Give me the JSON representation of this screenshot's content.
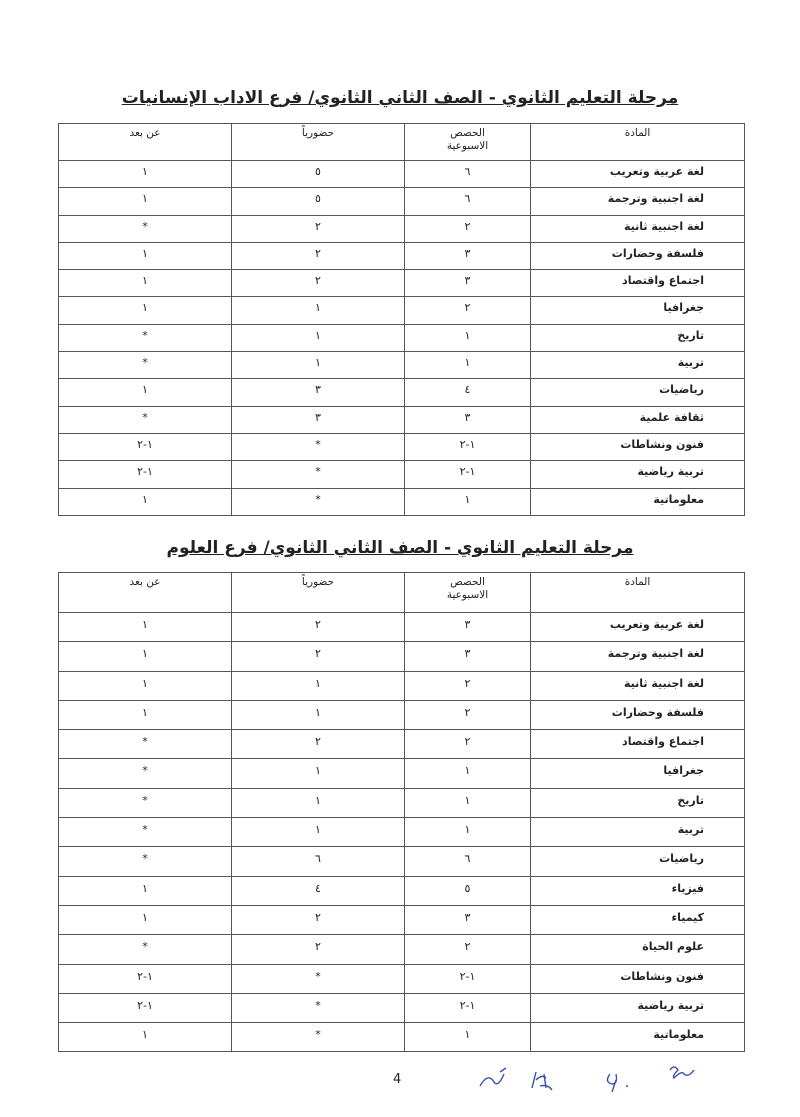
{
  "sections": [
    {
      "title": "مرحلة التعليم الثانوي - الصف الثاني الثانوي/ فرع الاداب الإنسانيات",
      "headers": {
        "subject": "المادة",
        "weekly_periods_1": "الحصص",
        "weekly_periods_2": "الاسبوعية",
        "in_person": "حضورياً",
        "remote": "عن بعد"
      },
      "rows": [
        [
          "لغة عربية وتعريب",
          "٦",
          "٥",
          "١"
        ],
        [
          "لغة اجنبية وترجمة",
          "٦",
          "٥",
          "١"
        ],
        [
          "لغة اجنبية ثانية",
          "٢",
          "٢",
          "*"
        ],
        [
          "فلسفة وحضارات",
          "٣",
          "٢",
          "١"
        ],
        [
          "اجتماع واقتصاد",
          "٣",
          "٢",
          "١"
        ],
        [
          "جغرافيا",
          "٢",
          "١",
          "١"
        ],
        [
          "تاريخ",
          "١",
          "١",
          "*"
        ],
        [
          "تربية",
          "١",
          "١",
          "*"
        ],
        [
          "رياضيات",
          "٤",
          "٣",
          "١"
        ],
        [
          "ثقافة علمية",
          "٣",
          "٣",
          "*"
        ],
        [
          "فنون ونشاطات",
          "١-٢",
          "*",
          "١-٢"
        ],
        [
          "تربية رياضية",
          "١-٢",
          "*",
          "١-٢"
        ],
        [
          "معلوماتية",
          "١",
          "*",
          "١"
        ]
      ]
    },
    {
      "title": "مرحلة التعليم الثانوي - الصف الثاني الثانوي/ فرع العلوم",
      "headers": {
        "subject": "المادة",
        "weekly_periods_1": "الحصص",
        "weekly_periods_2": "الاسبوعية",
        "in_person": "حضورياً",
        "remote": "عن بعد"
      },
      "rows": [
        [
          "لغة عربية وتعريب",
          "٣",
          "٢",
          "١"
        ],
        [
          "لغة اجنبية وترجمة",
          "٣",
          "٢",
          "١"
        ],
        [
          "لغة اجنبية ثانية",
          "٢",
          "١",
          "١"
        ],
        [
          "فلسفة وحضارات",
          "٢",
          "١",
          "١"
        ],
        [
          "اجتماع واقتصاد",
          "٢",
          "٢",
          "*"
        ],
        [
          "جغرافيا",
          "١",
          "١",
          "*"
        ],
        [
          "تاريخ",
          "١",
          "١",
          "*"
        ],
        [
          "تربية",
          "١",
          "١",
          "*"
        ],
        [
          "رياضيات",
          "٦",
          "٦",
          "*"
        ],
        [
          "فيزياء",
          "٥",
          "٤",
          "١"
        ],
        [
          "كيمياء",
          "٣",
          "٢",
          "١"
        ],
        [
          "علوم الحياة",
          "٢",
          "٢",
          "*"
        ],
        [
          "فنون ونشاطات",
          "١-٢",
          "*",
          "١-٢"
        ],
        [
          "تربية رياضية",
          "١-٢",
          "*",
          "١-٢"
        ],
        [
          "معلوماتية",
          "١",
          "*",
          "١"
        ]
      ]
    }
  ],
  "page_number": "4",
  "signatures": {
    "ink_color": "#3a4fb0"
  }
}
